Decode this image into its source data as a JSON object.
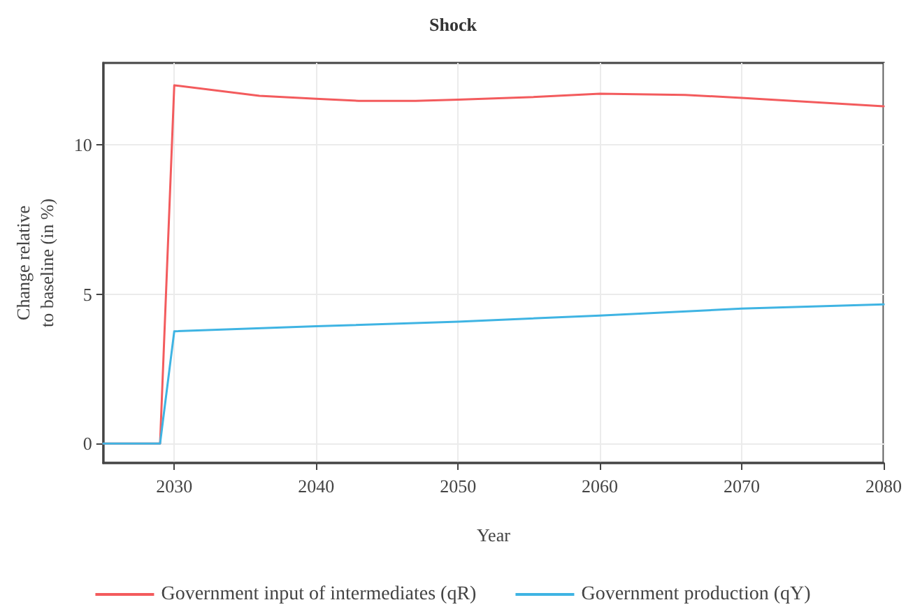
{
  "chart_data": {
    "type": "line",
    "title": "Shock",
    "xlabel": "Year",
    "ylabel": "Change relative\nto baseline (in %)",
    "series": [
      {
        "name": "Government input of intermediates (qR)",
        "color": "#f35b5d",
        "x": [
          2025,
          2029,
          2030,
          2036,
          2040,
          2043,
          2047,
          2050,
          2055,
          2060,
          2066,
          2070,
          2080
        ],
        "values": [
          0,
          0,
          12.0,
          11.65,
          11.55,
          11.48,
          11.48,
          11.52,
          11.6,
          11.72,
          11.68,
          11.58,
          11.3
        ]
      },
      {
        "name": "Government production (qY)",
        "color": "#3fb4e3",
        "x": [
          2025,
          2029,
          2030,
          2040,
          2050,
          2060,
          2070,
          2080
        ],
        "values": [
          0,
          0,
          3.76,
          3.93,
          4.08,
          4.29,
          4.52,
          4.66
        ]
      }
    ],
    "xlim": [
      2025,
      2080
    ],
    "xticks": [
      2030,
      2040,
      2050,
      2060,
      2070,
      2080
    ],
    "ylim": [
      -0.65,
      12.75
    ],
    "yticks": [
      0,
      5,
      10
    ],
    "grid": true,
    "legend": "bottom",
    "marker": "none",
    "line_style": "solid"
  }
}
